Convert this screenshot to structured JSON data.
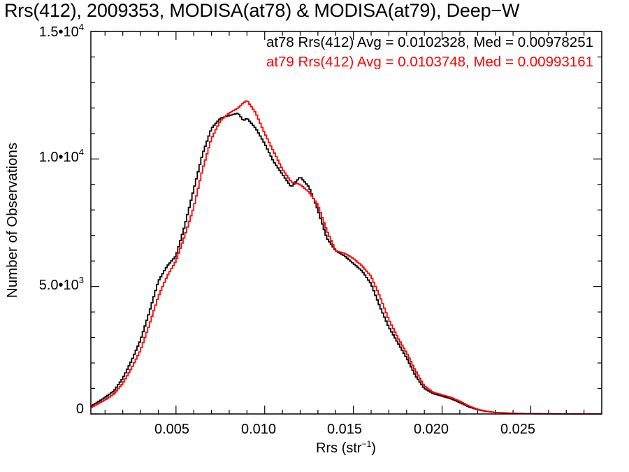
{
  "title": "Rrs(412), 2009353, MODISA(at78) & MODISA(at79), Deep−W",
  "stats": [
    {
      "text": "at78 Rrs(412) Avg = 0.0102328, Med = 0.00978251",
      "color": "#000000"
    },
    {
      "text": "at79 Rrs(412) Avg = 0.0103748, Med = 0.00993161",
      "color": "#ff0000"
    }
  ],
  "axes": {
    "xlabel": "Rrs (str",
    "xlabel_sup": "−1",
    "xlabel_end": ")",
    "ylabel": "Number of Observations",
    "y_ticks": [
      {
        "mant": "1.5•10",
        "exp": "4"
      },
      {
        "mant": "1.0•10",
        "exp": "4"
      },
      {
        "mant": "5.0•10",
        "exp": "3"
      },
      {
        "mant": "0",
        "exp": ""
      }
    ],
    "x_ticks": [
      "0.005",
      "0.010",
      "0.015",
      "0.020",
      "0.025"
    ]
  },
  "chart_data": {
    "type": "line",
    "step": true,
    "title": "Rrs(412), 2009353, MODISA(at78) & MODISA(at79), Deep−W",
    "xlabel": "Rrs (str⁻¹)",
    "ylabel": "Number of Observations",
    "xlim": [
      0.0002,
      0.029
    ],
    "ylim": [
      0,
      15000
    ],
    "x_ticks": [
      0.005,
      0.01,
      0.015,
      0.02,
      0.025
    ],
    "y_ticks": [
      0,
      5000,
      10000,
      15000
    ],
    "series": [
      {
        "name": "at78",
        "color": "#000000",
        "points": [
          [
            0.0002,
            300
          ],
          [
            0.001,
            650
          ],
          [
            0.0015,
            900
          ],
          [
            0.002,
            1400
          ],
          [
            0.0025,
            2100
          ],
          [
            0.003,
            2900
          ],
          [
            0.0035,
            4000
          ],
          [
            0.004,
            5200
          ],
          [
            0.0045,
            5800
          ],
          [
            0.005,
            6200
          ],
          [
            0.0055,
            7400
          ],
          [
            0.006,
            8800
          ],
          [
            0.0065,
            10200
          ],
          [
            0.007,
            11200
          ],
          [
            0.0075,
            11600
          ],
          [
            0.008,
            11700
          ],
          [
            0.0085,
            11800
          ],
          [
            0.0088,
            11500
          ],
          [
            0.009,
            11600
          ],
          [
            0.0095,
            11200
          ],
          [
            0.01,
            10600
          ],
          [
            0.0105,
            9900
          ],
          [
            0.011,
            9400
          ],
          [
            0.0115,
            8900
          ],
          [
            0.012,
            9300
          ],
          [
            0.0125,
            8900
          ],
          [
            0.013,
            8000
          ],
          [
            0.0135,
            6900
          ],
          [
            0.014,
            6400
          ],
          [
            0.0145,
            6200
          ],
          [
            0.015,
            5900
          ],
          [
            0.0155,
            5600
          ],
          [
            0.016,
            5100
          ],
          [
            0.0165,
            4200
          ],
          [
            0.017,
            3400
          ],
          [
            0.0175,
            2800
          ],
          [
            0.018,
            2200
          ],
          [
            0.0185,
            1500
          ],
          [
            0.019,
            1000
          ],
          [
            0.0195,
            800
          ],
          [
            0.02,
            700
          ],
          [
            0.0205,
            600
          ],
          [
            0.021,
            450
          ],
          [
            0.0215,
            280
          ],
          [
            0.022,
            170
          ],
          [
            0.0225,
            100
          ],
          [
            0.023,
            60
          ],
          [
            0.024,
            25
          ],
          [
            0.025,
            10
          ],
          [
            0.027,
            3
          ],
          [
            0.029,
            0
          ]
        ]
      },
      {
        "name": "at79",
        "color": "#ff0000",
        "points": [
          [
            0.0002,
            250
          ],
          [
            0.001,
            550
          ],
          [
            0.0015,
            780
          ],
          [
            0.002,
            1200
          ],
          [
            0.0025,
            1800
          ],
          [
            0.003,
            2500
          ],
          [
            0.0035,
            3500
          ],
          [
            0.004,
            4600
          ],
          [
            0.0045,
            5400
          ],
          [
            0.005,
            6000
          ],
          [
            0.0055,
            7000
          ],
          [
            0.006,
            8100
          ],
          [
            0.0065,
            9600
          ],
          [
            0.007,
            10800
          ],
          [
            0.0075,
            11500
          ],
          [
            0.008,
            11800
          ],
          [
            0.0085,
            12000
          ],
          [
            0.0088,
            12200
          ],
          [
            0.009,
            12300
          ],
          [
            0.0095,
            11800
          ],
          [
            0.01,
            11000
          ],
          [
            0.0105,
            10300
          ],
          [
            0.011,
            9600
          ],
          [
            0.0115,
            9100
          ],
          [
            0.012,
            9000
          ],
          [
            0.0125,
            8700
          ],
          [
            0.013,
            8200
          ],
          [
            0.0135,
            7200
          ],
          [
            0.014,
            6400
          ],
          [
            0.0145,
            6300
          ],
          [
            0.015,
            6100
          ],
          [
            0.0155,
            5800
          ],
          [
            0.016,
            5400
          ],
          [
            0.0165,
            4600
          ],
          [
            0.017,
            3700
          ],
          [
            0.0175,
            3000
          ],
          [
            0.018,
            2400
          ],
          [
            0.0185,
            1700
          ],
          [
            0.019,
            1100
          ],
          [
            0.0195,
            850
          ],
          [
            0.02,
            750
          ],
          [
            0.0205,
            650
          ],
          [
            0.021,
            500
          ],
          [
            0.0215,
            320
          ],
          [
            0.022,
            180
          ],
          [
            0.0225,
            110
          ],
          [
            0.023,
            60
          ],
          [
            0.024,
            25
          ],
          [
            0.025,
            10
          ],
          [
            0.027,
            3
          ],
          [
            0.029,
            0
          ]
        ]
      }
    ]
  }
}
